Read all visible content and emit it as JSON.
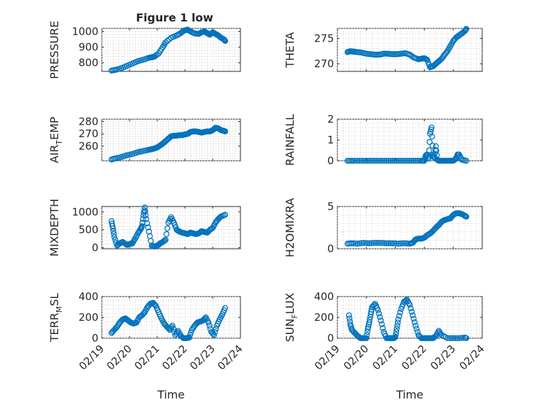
{
  "figure_title": "Figure 1 low",
  "colors": {
    "series": "#0072BD",
    "axes": "#262626",
    "grid": "#d0d0d0"
  },
  "chart_data": [
    {
      "type": "scatter",
      "id": "pressure",
      "ylabel": "PRESSURE",
      "ylim": [
        745,
        1020
      ],
      "yticks": [
        800,
        900,
        1000
      ],
      "xlim": [
        0,
        5
      ],
      "xticks": [
        0,
        1,
        2,
        3,
        4,
        5
      ],
      "xticklabels": [
        "02/19",
        "02/20",
        "02/21",
        "02/22",
        "02/23",
        "02/24"
      ],
      "show_xticklabels": false,
      "xlabel": "",
      "x": [
        0.35,
        0.5,
        0.7,
        0.9,
        1.1,
        1.3,
        1.5,
        1.7,
        1.8,
        1.9,
        2.05,
        2.2,
        2.3,
        2.5,
        2.7,
        2.85,
        2.95,
        3.05,
        3.1,
        3.2,
        3.35,
        3.5,
        3.6,
        3.7,
        3.75,
        3.8,
        3.85,
        3.9,
        4.0,
        4.1,
        4.2,
        4.3,
        4.4,
        4.45
      ],
      "y": [
        750,
        755,
        765,
        780,
        795,
        810,
        820,
        832,
        835,
        840,
        860,
        900,
        930,
        960,
        975,
        990,
        1005,
        1010,
        1012,
        1000,
        988,
        985,
        995,
        1000,
        995,
        990,
        985,
        980,
        995,
        985,
        975,
        960,
        950,
        940
      ]
    },
    {
      "type": "scatter",
      "id": "theta",
      "ylabel": "THETA",
      "ylim": [
        268.5,
        277
      ],
      "yticks": [
        270,
        275
      ],
      "xlim": [
        0,
        5
      ],
      "xticks": [
        0,
        1,
        2,
        3,
        4,
        5
      ],
      "xticklabels": [
        "02/19",
        "02/20",
        "02/21",
        "02/22",
        "02/23",
        "02/24"
      ],
      "show_xticklabels": false,
      "xlabel": "",
      "x": [
        0.35,
        0.45,
        0.55,
        0.7,
        0.85,
        1.0,
        1.15,
        1.3,
        1.45,
        1.6,
        1.75,
        1.9,
        2.05,
        2.2,
        2.35,
        2.5,
        2.65,
        2.8,
        2.9,
        3.0,
        3.1,
        3.2,
        3.3,
        3.4,
        3.5,
        3.6,
        3.7,
        3.8,
        3.9,
        4.0,
        4.1,
        4.2,
        4.3,
        4.4,
        4.45
      ],
      "y": [
        272.3,
        272.5,
        272.4,
        272.3,
        272.2,
        272.0,
        271.9,
        271.8,
        271.8,
        272.0,
        272.0,
        271.9,
        271.9,
        272.0,
        272.1,
        271.8,
        271.2,
        270.9,
        271.0,
        271.1,
        270.8,
        269.3,
        269.5,
        270.0,
        270.5,
        271.0,
        271.8,
        272.5,
        273.5,
        274.5,
        275.2,
        275.6,
        276.0,
        276.5,
        276.9
      ]
    },
    {
      "type": "scatter",
      "id": "air-temp",
      "ylabel": "AIR_TEMP",
      "ylim": [
        248,
        282
      ],
      "yticks": [
        260,
        270,
        280
      ],
      "xlim": [
        0,
        5
      ],
      "xticks": [
        0,
        1,
        2,
        3,
        4,
        5
      ],
      "xticklabels": [
        "02/19",
        "02/20",
        "02/21",
        "02/22",
        "02/23",
        "02/24"
      ],
      "show_xticklabels": false,
      "xlabel": "",
      "x": [
        0.35,
        0.5,
        0.7,
        0.9,
        1.1,
        1.3,
        1.5,
        1.7,
        1.8,
        1.9,
        2.0,
        2.1,
        2.2,
        2.3,
        2.4,
        2.5,
        2.6,
        2.7,
        2.8,
        2.9,
        3.0,
        3.1,
        3.2,
        3.3,
        3.4,
        3.5,
        3.6,
        3.7,
        3.8,
        3.9,
        4.0,
        4.05,
        4.1,
        4.2,
        4.3,
        4.4,
        4.45
      ],
      "y": [
        249,
        250,
        251,
        252.5,
        253.5,
        255,
        256,
        257,
        257.5,
        258,
        259,
        260.5,
        262,
        264,
        266,
        268,
        268.5,
        268.5,
        269,
        269,
        269.5,
        270,
        271.5,
        272,
        272,
        271.5,
        271,
        271.5,
        272,
        272,
        273,
        274,
        275,
        274.5,
        273,
        272.5,
        272
      ]
    },
    {
      "type": "scatter",
      "id": "rainfall",
      "ylabel": "RAINFALL",
      "ylim": [
        0,
        2
      ],
      "yticks": [
        0,
        1,
        2
      ],
      "xlim": [
        0,
        5
      ],
      "xticks": [
        0,
        1,
        2,
        3,
        4,
        5
      ],
      "xticklabels": [
        "02/19",
        "02/20",
        "02/21",
        "02/22",
        "02/23",
        "02/24"
      ],
      "show_xticklabels": false,
      "xlabel": "",
      "x": [
        0.35,
        0.5,
        0.7,
        0.9,
        1.1,
        1.3,
        1.5,
        1.7,
        1.9,
        2.1,
        2.3,
        2.5,
        2.7,
        2.9,
        3.0,
        3.05,
        3.1,
        3.15,
        3.2,
        3.25,
        3.3,
        3.35,
        3.4,
        3.45,
        3.5,
        3.6,
        3.7,
        3.8,
        3.9,
        4.0,
        4.1,
        4.15,
        4.2,
        4.3,
        4.45
      ],
      "y": [
        0,
        0,
        0,
        0,
        0,
        0,
        0,
        0,
        0,
        0,
        0,
        0,
        0,
        0,
        0,
        0.25,
        0.3,
        0.1,
        1.3,
        1.6,
        0.3,
        0.15,
        0.7,
        0.05,
        0,
        0,
        0,
        0,
        0,
        0,
        0.1,
        0.3,
        0.3,
        0.05,
        0
      ]
    },
    {
      "type": "scatter",
      "id": "mixdepth",
      "ylabel": "MIXDEPTH",
      "ylim": [
        -30,
        1150
      ],
      "yticks": [
        0,
        500,
        1000
      ],
      "xlim": [
        0,
        5
      ],
      "xticks": [
        0,
        1,
        2,
        3,
        4,
        5
      ],
      "xticklabels": [
        "02/19",
        "02/20",
        "02/21",
        "02/22",
        "02/23",
        "02/24"
      ],
      "show_xticklabels": false,
      "xlabel": "",
      "x": [
        0.35,
        0.4,
        0.45,
        0.55,
        0.65,
        0.75,
        0.9,
        1.0,
        1.1,
        1.2,
        1.3,
        1.4,
        1.45,
        1.5,
        1.55,
        1.6,
        1.7,
        1.8,
        1.9,
        2.0,
        2.05,
        2.1,
        2.2,
        2.3,
        2.4,
        2.5,
        2.6,
        2.7,
        2.8,
        2.9,
        3.0,
        3.1,
        3.2,
        3.3,
        3.4,
        3.5,
        3.6,
        3.7,
        3.8,
        3.9,
        4.0,
        4.1,
        4.2,
        4.3,
        4.45
      ],
      "y": [
        740,
        540,
        300,
        60,
        120,
        160,
        80,
        100,
        120,
        250,
        400,
        520,
        600,
        900,
        1120,
        800,
        450,
        60,
        30,
        60,
        80,
        120,
        160,
        220,
        700,
        850,
        700,
        500,
        450,
        420,
        400,
        380,
        420,
        400,
        380,
        400,
        460,
        440,
        420,
        500,
        550,
        700,
        800,
        870,
        920
      ]
    },
    {
      "type": "scatter",
      "id": "h2omixra",
      "ylabel": "H2OMIXRA",
      "ylim": [
        0,
        5
      ],
      "yticks": [
        0,
        5
      ],
      "xlim": [
        0,
        5
      ],
      "xticks": [
        0,
        1,
        2,
        3,
        4,
        5
      ],
      "xticklabels": [
        "02/19",
        "02/20",
        "02/21",
        "02/22",
        "02/23",
        "02/24"
      ],
      "show_xticklabels": false,
      "xlabel": "",
      "x": [
        0.35,
        0.5,
        0.7,
        0.9,
        1.1,
        1.3,
        1.5,
        1.7,
        1.9,
        2.1,
        2.3,
        2.5,
        2.6,
        2.7,
        2.8,
        2.9,
        3.0,
        3.1,
        3.2,
        3.3,
        3.4,
        3.5,
        3.6,
        3.7,
        3.8,
        3.9,
        4.0,
        4.1,
        4.2,
        4.3,
        4.4,
        4.45
      ],
      "y": [
        0.6,
        0.65,
        0.6,
        0.7,
        0.65,
        0.7,
        0.7,
        0.65,
        0.65,
        0.6,
        0.65,
        0.6,
        0.7,
        1.1,
        1.2,
        1.2,
        1.3,
        1.6,
        1.8,
        2.1,
        2.5,
        2.8,
        3.2,
        3.4,
        3.5,
        3.6,
        4.0,
        4.2,
        4.2,
        4.1,
        3.9,
        3.8
      ]
    },
    {
      "type": "scatter",
      "id": "terr-msl",
      "ylabel": "TERR_MSL",
      "ylim": [
        0,
        400
      ],
      "yticks": [
        0,
        200,
        400
      ],
      "xlim": [
        0,
        5
      ],
      "xticks": [
        0,
        1,
        2,
        3,
        4,
        5
      ],
      "xticklabels": [
        "02/19",
        "02/20",
        "02/21",
        "02/22",
        "02/23",
        "02/24"
      ],
      "show_xticklabels": true,
      "xlabel": "Time",
      "x": [
        0.35,
        0.45,
        0.55,
        0.65,
        0.75,
        0.85,
        0.95,
        1.05,
        1.15,
        1.25,
        1.35,
        1.45,
        1.55,
        1.65,
        1.75,
        1.85,
        1.95,
        2.05,
        2.15,
        2.25,
        2.35,
        2.45,
        2.55,
        2.65,
        2.75,
        2.85,
        2.95,
        3.05,
        3.15,
        3.25,
        3.35,
        3.45,
        3.55,
        3.65,
        3.75,
        3.85,
        3.95,
        4.05,
        4.15,
        4.25,
        4.35,
        4.45
      ],
      "y": [
        50,
        80,
        110,
        150,
        180,
        190,
        170,
        150,
        140,
        150,
        200,
        220,
        250,
        300,
        330,
        340,
        310,
        250,
        190,
        140,
        110,
        80,
        120,
        30,
        70,
        20,
        0,
        0,
        5,
        80,
        120,
        150,
        160,
        170,
        200,
        150,
        60,
        30,
        120,
        180,
        230,
        290
      ]
    },
    {
      "type": "scatter",
      "id": "sun-flux",
      "ylabel": "SUN_FLUX",
      "ylim": [
        0,
        400
      ],
      "yticks": [
        0,
        200,
        400
      ],
      "xlim": [
        0,
        5
      ],
      "xticks": [
        0,
        1,
        2,
        3,
        4,
        5
      ],
      "xticklabels": [
        "02/19",
        "02/20",
        "02/21",
        "02/22",
        "02/23",
        "02/24"
      ],
      "show_xticklabels": true,
      "xlabel": "Time",
      "x": [
        0.4,
        0.45,
        0.5,
        0.6,
        0.7,
        0.8,
        0.9,
        1.0,
        1.05,
        1.1,
        1.15,
        1.2,
        1.3,
        1.4,
        1.5,
        1.6,
        1.7,
        1.8,
        1.85,
        1.9,
        1.95,
        2.0,
        2.05,
        2.1,
        2.2,
        2.3,
        2.4,
        2.5,
        2.6,
        2.7,
        2.8,
        2.9,
        3.0,
        3.1,
        3.2,
        3.3,
        3.4,
        3.5,
        3.6,
        3.8,
        4.0,
        4.2,
        4.4,
        4.45
      ],
      "y": [
        220,
        130,
        80,
        50,
        20,
        0,
        0,
        0,
        90,
        150,
        230,
        300,
        330,
        270,
        170,
        60,
        0,
        0,
        0,
        0,
        0,
        10,
        90,
        180,
        280,
        350,
        370,
        320,
        220,
        120,
        30,
        0,
        0,
        0,
        0,
        0,
        20,
        70,
        30,
        0,
        0,
        0,
        5,
        0
      ]
    }
  ]
}
